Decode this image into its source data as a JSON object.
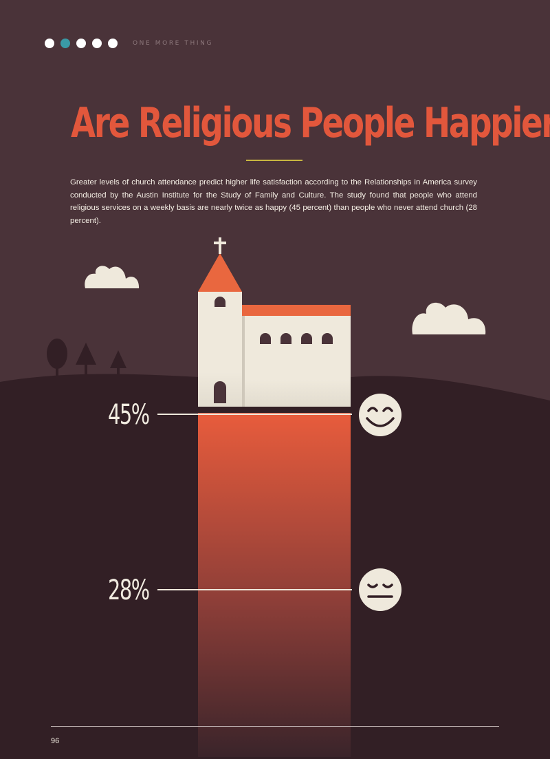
{
  "header": {
    "section_label": "ONE MORE THING",
    "dots": 5,
    "active_dot": 2
  },
  "title": "Are Religious People Happier?",
  "intro": "Greater levels of church attendance predict higher life satisfaction according to the Relationships in America survey conducted by the Austin Institute for the Study of Family and Culture. The study found that people who attend religious services on a weekly basis are nearly twice as happy (45 percent) than people who never attend church (28 percent).",
  "figure": {
    "weekly_attendance_happy": {
      "label": "45%",
      "value": 45,
      "icon": "smiling-face-icon"
    },
    "never_attend_happy": {
      "label": "28%",
      "value": 28,
      "icon": "neutral-face-icon"
    }
  },
  "colors": {
    "background": "#4a3339",
    "ground": "#321f25",
    "accent": "#e2573c",
    "cream": "#efe9dc",
    "teal": "#3a9aa6"
  },
  "footer": {
    "page_number": "96"
  }
}
